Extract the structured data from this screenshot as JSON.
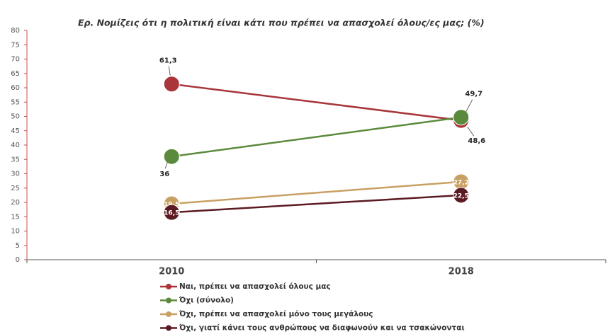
{
  "chart_data": {
    "type": "line",
    "title": "Ερ. Νομίζεις ότι η πολιτική είναι κάτι που πρέπει να απασχολεί όλους/ες μας; (%)",
    "categories": [
      "2010",
      "2018"
    ],
    "series": [
      {
        "name": "Ναι, πρέπει να απασχολεί όλους μας",
        "color": "#a8363b",
        "values": [
          61.3,
          48.6
        ],
        "value_labels": [
          "61,3",
          "48,6"
        ]
      },
      {
        "name": "Όχι (σύνολο)",
        "color": "#5b8a3c",
        "values": [
          36,
          49.7
        ],
        "value_labels": [
          "36",
          "49,7"
        ]
      },
      {
        "name": "Όχι, πρέπει να απασχολεί μόνο τους μεγάλους",
        "color": "#c9a063",
        "values": [
          19.5,
          27.2
        ],
        "value_labels": [
          "19,5",
          "27,2"
        ]
      },
      {
        "name": "Όχι, γιατί κάνει τους ανθρώπους να διαφωνούν και να τσακώνονται",
        "color": "#5c1a22",
        "values": [
          16.5,
          22.5
        ],
        "value_labels": [
          "16,5",
          "22,5"
        ]
      }
    ],
    "ylim": [
      0,
      80
    ],
    "yticks": [
      0,
      5,
      10,
      15,
      20,
      25,
      30,
      35,
      40,
      45,
      50,
      55,
      60,
      65,
      70,
      75,
      80
    ],
    "grid": false
  }
}
